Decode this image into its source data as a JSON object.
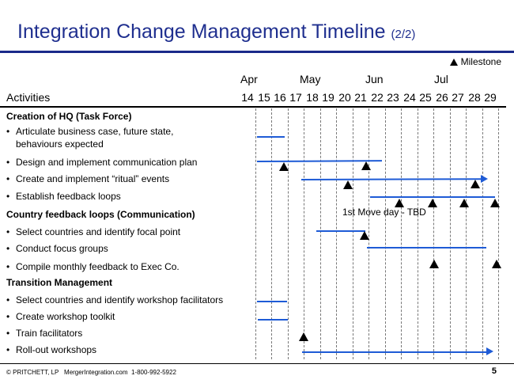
{
  "title": "Integration Change Management Timeline",
  "title_suffix": "(2/2)",
  "legend_label": "Milestone",
  "months": [
    "Apr",
    "May",
    "Jun",
    "Jul"
  ],
  "activities_header": "Activities",
  "weeks": [
    "14",
    "15",
    "16",
    "17",
    "18",
    "19",
    "20",
    "21",
    "22",
    "23",
    "24",
    "25",
    "26",
    "27",
    "28",
    "29"
  ],
  "sections": [
    {
      "label": "Creation of HQ (Task Force)",
      "items": [
        {
          "label": "Articulate business case, future state,"
        },
        {
          "label": "behaviours expected"
        },
        {
          "label": "Design and implement communication plan"
        },
        {
          "label": "Create and implement “ritual” events"
        },
        {
          "label": "Establish feedback loops"
        }
      ]
    },
    {
      "label": "Country feedback loops (Communication)",
      "items": [
        {
          "label": "Select countries and identify focal point"
        },
        {
          "label": "Conduct focus groups"
        },
        {
          "label": "Compile monthly feedback to Exec Co."
        }
      ]
    },
    {
      "label": "Transition Management",
      "items": [
        {
          "label": "Select countries and identify workshop facilitators"
        },
        {
          "label": "Create workshop toolkit"
        },
        {
          "label": "Train facilitators"
        },
        {
          "label": "Roll-out workshops"
        }
      ]
    }
  ],
  "annotation": "1st Move day - TBD",
  "footer": {
    "copyright": "© PRITCHETT, LP",
    "site": "MergerIntegration.com",
    "phone": "1-800-992-5922",
    "page": "5"
  },
  "colors": {
    "title": "#1f2f8f",
    "bar": "#1e5bd6",
    "milestone": "#000000"
  }
}
